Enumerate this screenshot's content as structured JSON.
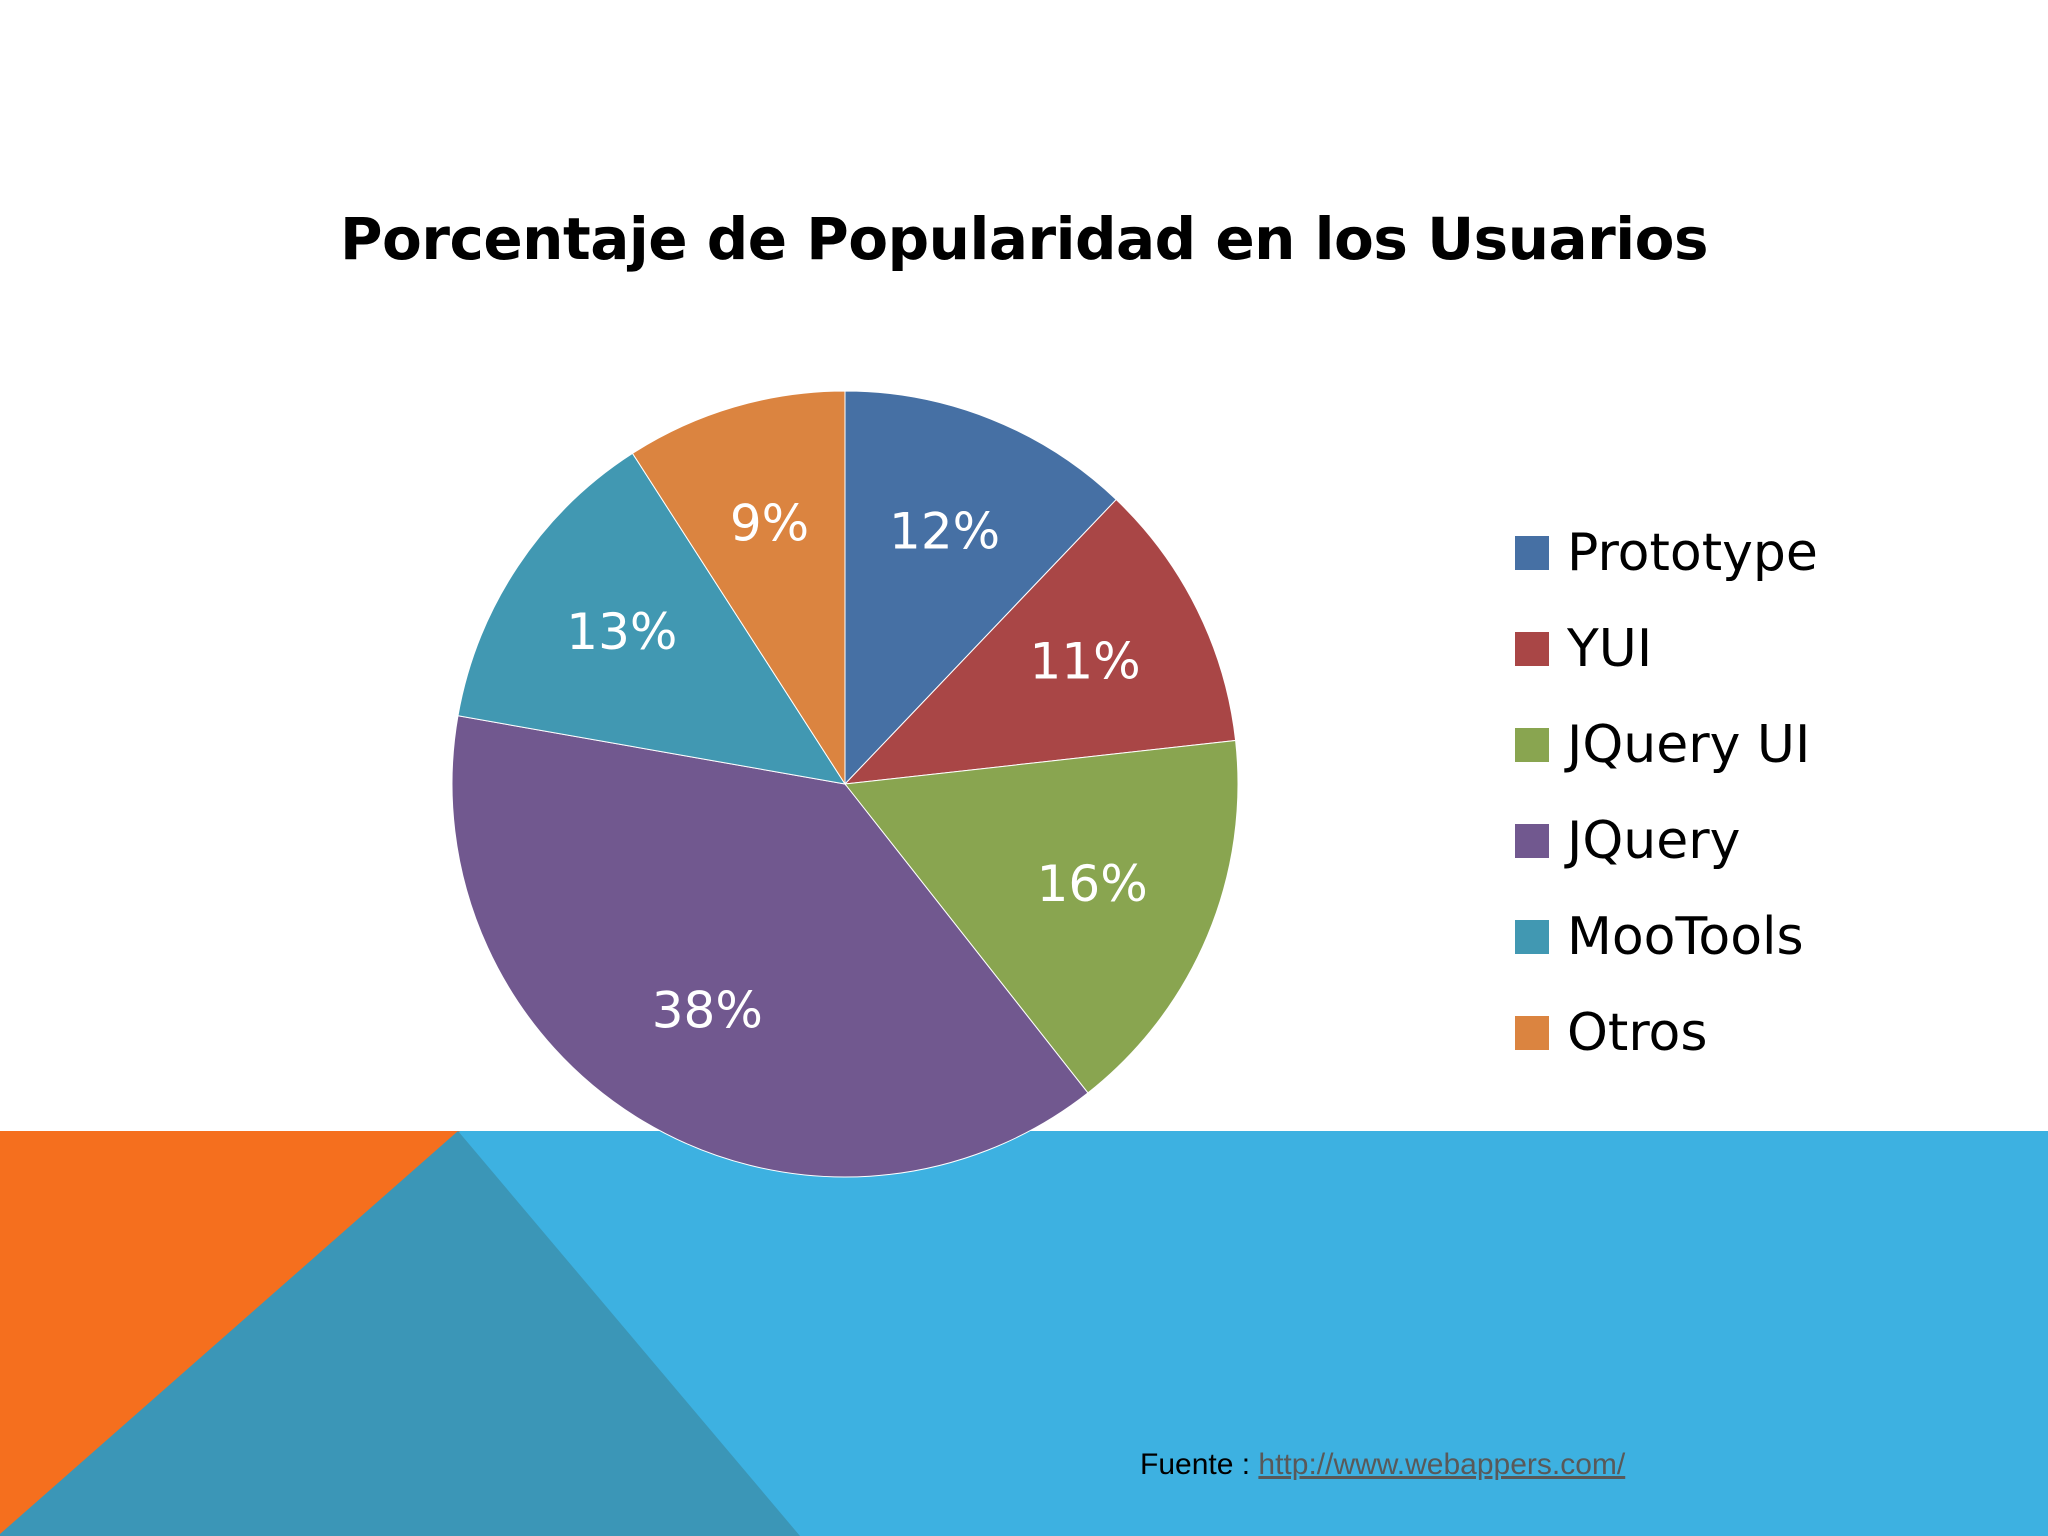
{
  "colors": {
    "background": "#ffffff",
    "band_blue": "#3db1e1",
    "band_orange": "#f56f1e",
    "band_teal": "#3b96b7",
    "label_text": "#ffffff"
  },
  "chart_data": {
    "type": "pie",
    "title": "Porcentaje de Popularidad en los Usuarios",
    "legend_position": "right",
    "slices": [
      {
        "name": "Prototype",
        "value": 12,
        "label": "12%",
        "color": "#4670a4"
      },
      {
        "name": "YUI",
        "value": 11,
        "label": "11%",
        "color": "#a94646"
      },
      {
        "name": "JQuery UI",
        "value": 16,
        "label": "16%",
        "color": "#89a550"
      },
      {
        "name": "JQuery",
        "value": 38,
        "label": "38%",
        "color": "#71588f"
      },
      {
        "name": "MooTools",
        "value": 13,
        "label": "13%",
        "color": "#4198b2"
      },
      {
        "name": "Otros",
        "value": 9,
        "label": "9%",
        "color": "#db8440"
      }
    ]
  },
  "source": {
    "prefix": "Fuente : ",
    "link": "http://www.webappers.com/"
  }
}
